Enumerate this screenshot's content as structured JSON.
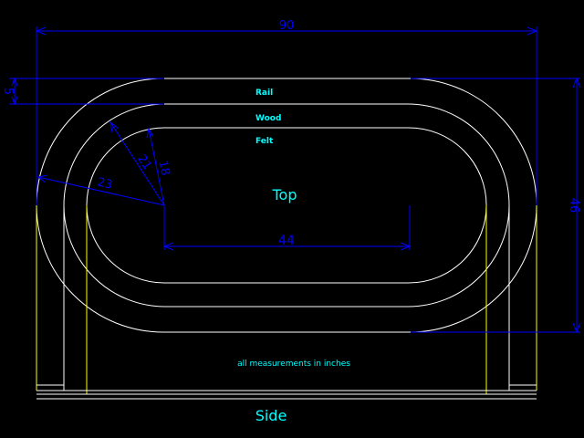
{
  "drawing": {
    "width_dim": "90",
    "height_dim": "46",
    "rail_width_dim": "5",
    "straight_dim": "44",
    "radius_outer_dim": "23",
    "radius_mid_dim": "21",
    "radius_inner_dim": "18",
    "layer_rail": "Rail",
    "layer_wood": "Wood",
    "layer_felt": "Felt",
    "view_top": "Top",
    "view_side": "Side",
    "note": "all measurements in inches"
  },
  "colors": {
    "background": "#000000",
    "outline": "#ffffff",
    "dimension": "#0000ff",
    "label": "#00ffff",
    "side_edge": "#ffff00"
  }
}
